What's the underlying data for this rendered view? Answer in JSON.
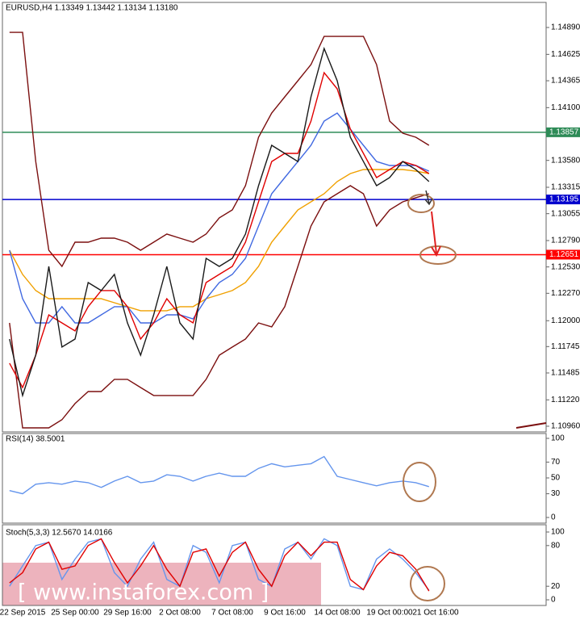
{
  "chart_data": [
    {
      "type": "line",
      "title": "EURUSD,H4  1.13349 1.13442 1.13134 1.13180",
      "ylim": [
        1.10904,
        1.15137
      ],
      "yticks": [
        {
          "value": 1.1489,
          "label": "1.14890"
        },
        {
          "value": 1.14625,
          "label": "1.14625"
        },
        {
          "value": 1.14365,
          "label": "1.14365"
        },
        {
          "value": 1.141,
          "label": "1.14100"
        },
        {
          "value": 1.1358,
          "label": "1.13580"
        },
        {
          "value": 1.13315,
          "label": "1.13315"
        },
        {
          "value": 1.13055,
          "label": "1.13055"
        },
        {
          "value": 1.1279,
          "label": "1.12790"
        },
        {
          "value": 1.1253,
          "label": "1.12530"
        },
        {
          "value": 1.1227,
          "label": "1.12270"
        },
        {
          "value": 1.12,
          "label": "1.12000"
        },
        {
          "value": 1.11745,
          "label": "1.11745"
        },
        {
          "value": 1.11485,
          "label": "1.11485"
        },
        {
          "value": 1.1122,
          "label": "1.11220"
        },
        {
          "value": 1.1096,
          "label": "1.10960"
        }
      ],
      "levels": [
        {
          "value": 1.13857,
          "color": "#2e8b57"
        },
        {
          "value": 1.13195,
          "color": "#0000cd"
        },
        {
          "value": 1.12651,
          "color": "#ff0000"
        }
      ],
      "series": [
        {
          "color": "#7b0f0f",
          "values": [
            1.14842,
            1.14842,
            1.13569,
            1.12694,
            1.12535,
            1.12774,
            1.12774,
            1.12814,
            1.12814,
            1.12774,
            1.12694,
            1.12774,
            1.12854,
            1.12814,
            1.12774,
            1.12854,
            1.13013,
            1.13092,
            1.13331,
            1.13808,
            1.14047,
            1.14206,
            1.14365,
            1.14524,
            1.14802,
            1.14802,
            1.14802,
            1.14802,
            1.14524,
            1.13967,
            1.13848,
            1.13808,
            1.13729
          ]
        },
        {
          "color": "#7b0f0f",
          "values": [
            1.11978,
            1.10944,
            1.10944,
            1.10944,
            1.11024,
            1.11183,
            1.11302,
            1.11302,
            1.11422,
            1.11422,
            1.11342,
            1.11263,
            1.11263,
            1.11263,
            1.11263,
            1.11422,
            1.1166,
            1.1174,
            1.11819,
            1.11978,
            1.11939,
            1.12138,
            1.12535,
            1.12933,
            1.13172,
            1.13251,
            1.13331,
            1.13251,
            1.12933,
            1.13092,
            1.13172,
            1.13212,
            1.13251
          ]
        },
        {
          "color": "#f0a000",
          "values": [
            1.12694,
            1.12456,
            1.12297,
            1.12217,
            1.12217,
            1.12217,
            1.12217,
            1.12217,
            1.12177,
            1.12138,
            1.12098,
            1.12098,
            1.12098,
            1.12138,
            1.12138,
            1.12217,
            1.12257,
            1.12297,
            1.12376,
            1.12535,
            1.12774,
            1.12933,
            1.13092,
            1.13172,
            1.13251,
            1.13371,
            1.1345,
            1.1349,
            1.1349,
            1.1349,
            1.1349,
            1.13474,
            1.1345
          ]
        },
        {
          "color": "#4169e1",
          "values": [
            1.12694,
            1.12217,
            1.11978,
            1.11978,
            1.12138,
            1.11978,
            1.11978,
            1.12058,
            1.12138,
            1.12138,
            1.11978,
            1.11978,
            1.12058,
            1.12058,
            1.12018,
            1.12217,
            1.12376,
            1.12456,
            1.12615,
            1.12933,
            1.13251,
            1.1341,
            1.13569,
            1.13729,
            1.13967,
            1.14047,
            1.13888,
            1.13729,
            1.13569,
            1.1353,
            1.1353,
            1.1353,
            1.13474
          ]
        },
        {
          "color": "#e00000",
          "values": [
            1.11581,
            1.11342,
            1.1166,
            1.12058,
            1.11978,
            1.11899,
            1.12138,
            1.12297,
            1.12297,
            1.12138,
            1.11819,
            1.11978,
            1.12217,
            1.12058,
            1.11978,
            1.12376,
            1.12456,
            1.12535,
            1.12774,
            1.13172,
            1.13569,
            1.13649,
            1.13649,
            1.13967,
            1.14445,
            1.14286,
            1.13888,
            1.13649,
            1.1341,
            1.1349,
            1.13569,
            1.1353,
            1.1345
          ]
        },
        {
          "color": "#1a1a1a",
          "values": [
            1.11819,
            1.11263,
            1.1166,
            1.12535,
            1.1174,
            1.11819,
            1.12376,
            1.12297,
            1.12456,
            1.11978,
            1.1166,
            1.12058,
            1.12535,
            1.11978,
            1.11819,
            1.12615,
            1.12535,
            1.12615,
            1.12854,
            1.13331,
            1.13729,
            1.13649,
            1.13569,
            1.14206,
            1.14683,
            1.14365,
            1.13808,
            1.13569,
            1.13331,
            1.1341,
            1.13569,
            1.1349,
            1.13371
          ]
        }
      ]
    },
    {
      "type": "line",
      "title": "RSI(14) 38.5001",
      "ylim": [
        0,
        100
      ],
      "yticks": [
        100,
        70,
        50,
        30,
        0
      ],
      "series": [
        {
          "color": "#6495ed",
          "values": [
            34,
            30,
            42,
            44,
            42,
            46,
            44,
            38,
            46,
            52,
            44,
            46,
            54,
            52,
            46,
            52,
            56,
            52,
            52,
            62,
            68,
            64,
            66,
            68,
            77,
            52,
            48,
            44,
            40,
            44,
            46,
            44,
            39
          ]
        }
      ]
    },
    {
      "type": "line",
      "title": "Stoch(5,3,3) 12.5670 14.0166",
      "ylim": [
        0,
        100
      ],
      "yticks": [
        100,
        80,
        20,
        0
      ],
      "categories": [
        null,
        "22 Sep 2015",
        null,
        null,
        null,
        "25 Sep 00:00",
        null,
        null,
        null,
        "29 Sep 16:00",
        null,
        null,
        null,
        "2 Oct 08:00",
        null,
        null,
        null,
        "7 Oct 08:00",
        null,
        null,
        null,
        "9 Oct 16:00",
        null,
        null,
        null,
        "14 Oct 08:00",
        null,
        null,
        null,
        "19 Oct 00:00",
        null,
        null,
        null
      ],
      "extra_label": "21 Oct 16:00",
      "watermark": "[ www.instaforex.com ]",
      "series": [
        {
          "color": "#6495ed",
          "values": [
            20,
            50,
            80,
            85,
            30,
            60,
            85,
            90,
            40,
            20,
            60,
            85,
            30,
            20,
            80,
            70,
            25,
            80,
            85,
            30,
            20,
            75,
            85,
            60,
            90,
            80,
            20,
            15,
            60,
            75,
            60,
            40,
            14
          ]
        },
        {
          "color": "#e00000",
          "values": [
            25,
            40,
            75,
            85,
            45,
            50,
            80,
            90,
            55,
            25,
            50,
            80,
            45,
            20,
            70,
            75,
            35,
            70,
            85,
            45,
            20,
            65,
            85,
            65,
            85,
            85,
            30,
            15,
            50,
            70,
            65,
            45,
            13
          ]
        }
      ]
    }
  ]
}
